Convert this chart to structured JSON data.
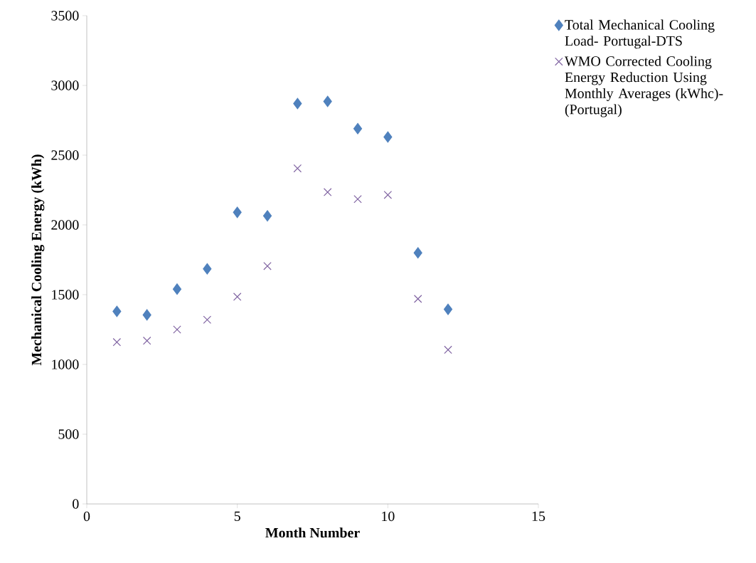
{
  "chart_data": {
    "type": "scatter",
    "xlabel": "Month Number",
    "ylabel": "Mechanical Cooling Energy (kWh)",
    "x": [
      1,
      2,
      3,
      4,
      5,
      6,
      7,
      8,
      9,
      10,
      11,
      12
    ],
    "series": [
      {
        "name": "Total Mechanical Cooling Load- Portugal-DTS",
        "color": "#4f81bd",
        "marker": "diamond",
        "values": [
          1380,
          1355,
          1540,
          1685,
          2090,
          2065,
          2870,
          2885,
          2690,
          2630,
          1800,
          1395
        ]
      },
      {
        "name": "WMO Corrected Cooling Energy Reduction Using Monthly Averages (kWhc)- (Portugal)",
        "color": "#8064a2",
        "marker": "cross",
        "values": [
          1160,
          1170,
          1250,
          1320,
          1485,
          1705,
          2405,
          2235,
          2185,
          2215,
          1470,
          1105
        ]
      }
    ],
    "xlim": [
      0,
      15
    ],
    "xticks": [
      0,
      5,
      10,
      15
    ],
    "ylim": [
      0,
      3500
    ],
    "yticks": [
      0,
      500,
      1000,
      1500,
      2000,
      2500,
      3000,
      3500
    ],
    "grid": false,
    "legend": "top right"
  }
}
